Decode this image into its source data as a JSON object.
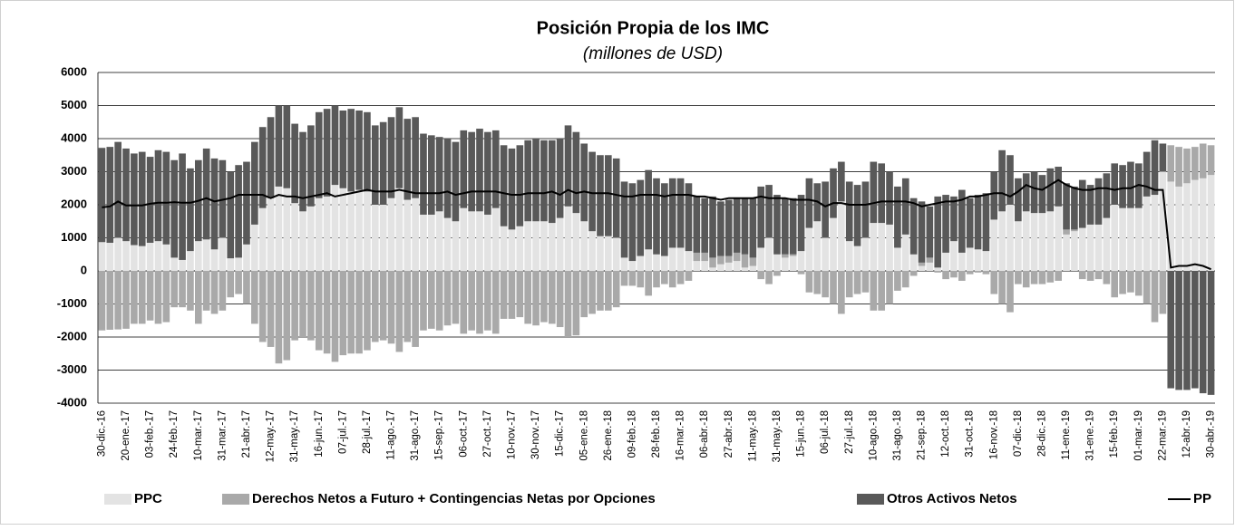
{
  "chart_data": {
    "type": "bar",
    "stacked": true,
    "title": "Posición Propia de los IMC",
    "subtitle": "(millones de USD)",
    "ylim": [
      -4000,
      6000
    ],
    "yticks": [
      -4000,
      -3000,
      -2000,
      -1000,
      0,
      1000,
      2000,
      3000,
      4000,
      5000,
      6000
    ],
    "grid": true,
    "legend": "bottom",
    "categories": [
      "30-dic.-16",
      null,
      null,
      "20-ene.-17",
      null,
      null,
      "03-feb.-17",
      null,
      null,
      "24-feb.-17",
      null,
      null,
      "10-mar.-17",
      null,
      null,
      "31-mar.-17",
      null,
      null,
      "21-abr.-17",
      null,
      null,
      "12-may.-17",
      null,
      null,
      "31-may.-17",
      null,
      null,
      "16-jun.-17",
      null,
      null,
      "07-jul.-17",
      null,
      null,
      "28-jul.-17",
      null,
      null,
      "11-ago.-17",
      null,
      null,
      "31-ago.-17",
      null,
      null,
      "15-sep.-17",
      null,
      null,
      "06-oct.-17",
      null,
      null,
      "27-oct.-17",
      null,
      null,
      "10-nov.-17",
      null,
      null,
      "30-nov.-17",
      null,
      null,
      "15-dic.-17",
      null,
      null,
      "05-ene.-18",
      null,
      null,
      "26-ene.-18",
      null,
      null,
      "09-feb.-18",
      null,
      null,
      "28-feb.-18",
      null,
      null,
      "16-mar.-18",
      null,
      null,
      "06-abr.-18",
      null,
      null,
      "27-abr.-18",
      null,
      null,
      "11-may.-18",
      null,
      null,
      "31-may.-18",
      null,
      null,
      "15-jun.-18",
      null,
      null,
      "06-jul.-18",
      null,
      null,
      "27-jul.-18",
      null,
      null,
      "10-ago.-18",
      null,
      null,
      "31-ago.-18",
      null,
      null,
      "21-sep.-18",
      null,
      null,
      "12-oct.-18",
      null,
      null,
      "31-oct.-18",
      null,
      null,
      "16-nov.-18",
      null,
      null,
      "07-dic.-18",
      null,
      null,
      "28-dic.-18",
      null,
      null,
      "11-ene.-19",
      null,
      null,
      "31-ene.-19",
      null,
      null,
      "15-feb.-19",
      null,
      null,
      "01-mar.-19",
      null,
      null,
      "22-mar.-19",
      null,
      null,
      "12-abr.-19",
      null,
      null,
      "30-abr.-19"
    ],
    "series": [
      {
        "name": "PPC",
        "type": "bar",
        "color": "#e3e3e3",
        "values": [
          870,
          850,
          1000,
          900,
          780,
          750,
          850,
          900,
          800,
          400,
          330,
          600,
          900,
          950,
          650,
          1000,
          380,
          400,
          800,
          1400,
          1900,
          2200,
          2550,
          2500,
          2050,
          1800,
          1950,
          2200,
          2250,
          2600,
          2500,
          2400,
          2450,
          2400,
          2000,
          2000,
          2200,
          2500,
          2150,
          2200,
          1700,
          1700,
          1800,
          1600,
          1500,
          1900,
          1800,
          1800,
          1700,
          1900,
          1350,
          1250,
          1350,
          1500,
          1500,
          1500,
          1450,
          1600,
          1950,
          1750,
          1500,
          1200,
          1050,
          1050,
          1000,
          400,
          300,
          450,
          650,
          500,
          450,
          700,
          700,
          600,
          300,
          300,
          100,
          200,
          250,
          300,
          100,
          150,
          700,
          1000,
          500,
          400,
          450,
          600,
          1300,
          1500,
          1000,
          1600,
          2100,
          900,
          750,
          1000,
          1450,
          1450,
          1400,
          700,
          1100,
          500,
          150,
          250,
          100,
          550,
          900,
          550,
          700,
          650,
          600,
          1550,
          1800,
          2000,
          1500,
          1800,
          1750,
          1750,
          1800,
          1950,
          1100,
          1200,
          1300,
          1400,
          1400,
          1600,
          2000,
          1900,
          1900,
          1900,
          2250,
          2300,
          3000,
          2700,
          2550,
          2650,
          2750,
          2800,
          2900
        ]
      },
      {
        "name": "Derechos Netos a Futuro + Contingencias Netas por Opciones",
        "type": "bar",
        "color": "#a9a9a9",
        "values": [
          -1800,
          -1780,
          -1770,
          -1750,
          -1600,
          -1600,
          -1500,
          -1600,
          -1550,
          -1100,
          -1100,
          -1200,
          -1600,
          -1200,
          -1300,
          -1200,
          -800,
          -700,
          -1000,
          -1600,
          -2150,
          -2300,
          -2800,
          -2700,
          -2100,
          -2000,
          -2100,
          -2400,
          -2500,
          -2750,
          -2550,
          -2500,
          -2500,
          -2400,
          -2150,
          -2100,
          -2200,
          -2450,
          -2150,
          -2300,
          -1800,
          -1750,
          -1800,
          -1650,
          -1600,
          -1900,
          -1800,
          -1900,
          -1800,
          -1900,
          -1450,
          -1450,
          -1400,
          -1600,
          -1650,
          -1550,
          -1600,
          -1700,
          -2000,
          -1950,
          -1400,
          -1300,
          -1200,
          -1200,
          -1100,
          -450,
          -450,
          -500,
          -750,
          -500,
          -400,
          -500,
          -400,
          -300,
          250,
          250,
          300,
          250,
          200,
          250,
          400,
          250,
          -250,
          -400,
          -150,
          100,
          50,
          -100,
          -650,
          -700,
          -800,
          -1000,
          -1300,
          -800,
          -700,
          -650,
          -1200,
          -1200,
          -1000,
          -600,
          -500,
          -150,
          100,
          150,
          -50,
          -250,
          -200,
          -300,
          -100,
          -50,
          -100,
          -700,
          -1000,
          -1250,
          -400,
          -500,
          -400,
          -400,
          -350,
          -300,
          150,
          50,
          -250,
          -300,
          -250,
          -400,
          -800,
          -700,
          -650,
          -750,
          -1000,
          -1550,
          -1300,
          1100,
          1200,
          1050,
          1000,
          1050,
          900
        ]
      },
      {
        "name": "Otros Activos Netos",
        "type": "bar",
        "color": "#595959",
        "values": [
          2850,
          2900,
          2900,
          2800,
          2770,
          2850,
          2600,
          2750,
          2800,
          2950,
          3220,
          2500,
          2450,
          2750,
          2750,
          2350,
          2620,
          2800,
          2500,
          2500,
          2450,
          2450,
          2450,
          2500,
          2400,
          2400,
          2450,
          2600,
          2650,
          2400,
          2350,
          2500,
          2400,
          2400,
          2400,
          2500,
          2450,
          2450,
          2450,
          2450,
          2450,
          2400,
          2250,
          2400,
          2400,
          2350,
          2400,
          2500,
          2500,
          2350,
          2450,
          2450,
          2450,
          2450,
          2500,
          2450,
          2500,
          2400,
          2450,
          2450,
          2350,
          2400,
          2450,
          2450,
          2400,
          2300,
          2350,
          2300,
          2400,
          2300,
          2200,
          2100,
          2100,
          2050,
          1700,
          1650,
          1850,
          1650,
          1700,
          1650,
          1700,
          1800,
          1850,
          1600,
          1800,
          1700,
          1700,
          1700,
          1500,
          1150,
          1700,
          1500,
          1200,
          1800,
          1850,
          1700,
          1850,
          1800,
          1600,
          1850,
          1700,
          1700,
          1850,
          1550,
          2150,
          1750,
          1350,
          1900,
          1500,
          1650,
          1750,
          1450,
          1850,
          1500,
          1300,
          1150,
          1250,
          1150,
          1300,
          1200,
          1400,
          1300,
          1450,
          1200,
          1400,
          1350,
          1250,
          1300,
          1400,
          1350,
          1350,
          1650,
          850,
          -3550,
          -3600,
          -3600,
          -3550,
          -3700,
          -3750
        ]
      },
      {
        "name": "PP",
        "type": "line",
        "color": "#000000",
        "values": [
          1920,
          1950,
          2100,
          1980,
          1980,
          1980,
          2030,
          2060,
          2060,
          2080,
          2060,
          2060,
          2120,
          2200,
          2100,
          2150,
          2200,
          2300,
          2300,
          2300,
          2300,
          2200,
          2300,
          2250,
          2250,
          2200,
          2250,
          2300,
          2350,
          2250,
          2300,
          2350,
          2400,
          2450,
          2400,
          2400,
          2400,
          2450,
          2400,
          2350,
          2350,
          2350,
          2350,
          2400,
          2300,
          2350,
          2400,
          2400,
          2400,
          2400,
          2350,
          2300,
          2300,
          2350,
          2350,
          2350,
          2400,
          2300,
          2450,
          2350,
          2400,
          2350,
          2350,
          2350,
          2300,
          2250,
          2250,
          2300,
          2300,
          2300,
          2250,
          2300,
          2300,
          2300,
          2250,
          2250,
          2200,
          2150,
          2200,
          2200,
          2200,
          2200,
          2250,
          2200,
          2200,
          2200,
          2150,
          2150,
          2150,
          2100,
          1950,
          2050,
          2050,
          2000,
          2000,
          2000,
          2050,
          2100,
          2100,
          2100,
          2100,
          2050,
          1950,
          2000,
          2050,
          2100,
          2100,
          2150,
          2250,
          2250,
          2300,
          2350,
          2350,
          2250,
          2400,
          2600,
          2500,
          2450,
          2600,
          2750,
          2600,
          2500,
          2450,
          2450,
          2500,
          2500,
          2450,
          2500,
          2500,
          2600,
          2550,
          2450,
          2450,
          100,
          150,
          150,
          200,
          150,
          50
        ]
      }
    ]
  }
}
